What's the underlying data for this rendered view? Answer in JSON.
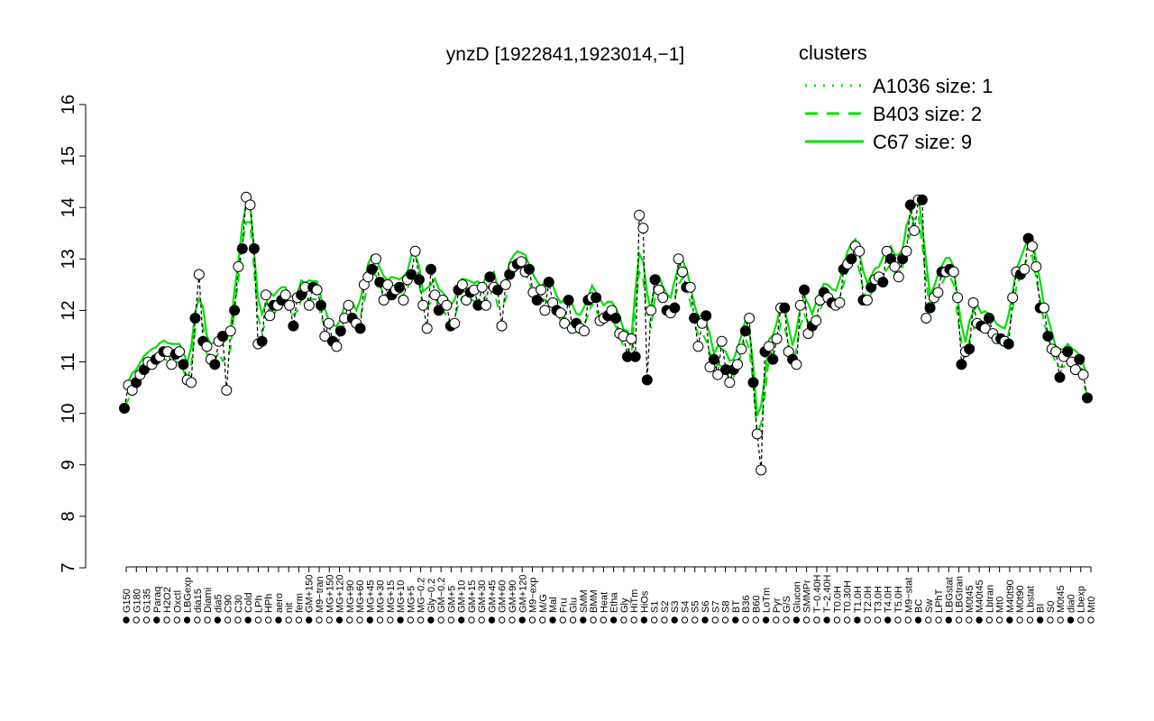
{
  "chart_data": {
    "type": "scatter",
    "title": "ynzD [1922841,1923014,−1]",
    "xlabel": "",
    "ylabel": "",
    "ylim": [
      7,
      16
    ],
    "yticks": [
      "7",
      "8",
      "9",
      "10",
      "11",
      "12",
      "13",
      "14",
      "15",
      "16"
    ],
    "x_tick_labels": [
      "G150",
      "G180",
      "G135",
      "Paraq",
      "H2O2",
      "Oxctl",
      "LBGexp",
      "dia15",
      "Diami",
      "dia5",
      "C90",
      "C30",
      "Cold",
      "LPh",
      "HPh",
      "aero",
      "nit",
      "ferm",
      "GM+150",
      "M9−tran",
      "MG+150",
      "MG+120",
      "MG+90",
      "MG+60",
      "MG+45",
      "MG+30",
      "MG+15",
      "MG+10",
      "MG+5",
      "MG−0.2",
      "Gly−0.2",
      "GM−0.2",
      "GM+5",
      "GM+10",
      "GM+15",
      "GM+30",
      "GM+45",
      "GM+60",
      "GM+90",
      "GM+120",
      "M9−exp",
      "M/G",
      "Mal",
      "Fru",
      "Glu",
      "SMM",
      "BMM",
      "Heat",
      "Etha",
      "Gly",
      "HiTm",
      "HiOs",
      "S1",
      "S2",
      "S3",
      "S4",
      "S5",
      "S6",
      "S7",
      "S8",
      "BT",
      "B36",
      "B60",
      "LoTm",
      "Pyr",
      "G/S",
      "Glucon",
      "SMMPr",
      "T−0.40H",
      "T−2.40H",
      "T0.0H",
      "T0.30H",
      "T1.0H",
      "T2.0H",
      "T3.0H",
      "T4.0H",
      "T5.0H",
      "M9−stat",
      "BC",
      "Sw",
      "LPhT",
      "LBGstat",
      "LBGtran",
      "M0t45",
      "M40t45",
      "Lbtran",
      "Mt0",
      "M40t90",
      "M0t90",
      "Lbstat",
      "BI",
      "S0",
      "M0t45",
      "dia0",
      "Lbexp",
      "Mt0"
    ],
    "points": [
      10.1,
      10.55,
      10.45,
      10.6,
      10.75,
      10.85,
      11.0,
      10.95,
      11.05,
      11.1,
      11.2,
      11.2,
      10.95,
      11.15,
      11.2,
      10.95,
      10.65,
      10.6,
      11.85,
      12.7,
      11.4,
      11.3,
      11.05,
      10.95,
      11.4,
      11.5,
      10.45,
      11.6,
      12.0,
      12.85,
      13.2,
      14.2,
      14.05,
      13.2,
      11.35,
      11.4,
      12.3,
      11.9,
      12.1,
      12.1,
      12.2,
      12.3,
      12.1,
      11.7,
      12.25,
      12.3,
      12.45,
      12.1,
      12.45,
      12.4,
      12.1,
      11.5,
      11.75,
      11.4,
      11.3,
      11.6,
      11.85,
      12.1,
      11.85,
      11.75,
      11.65,
      12.5,
      12.65,
      12.8,
      13.0,
      12.55,
      12.2,
      12.5,
      12.3,
      12.4,
      12.45,
      12.2,
      12.6,
      12.7,
      13.15,
      12.6,
      12.1,
      11.65,
      12.8,
      12.3,
      12.0,
      12.2,
      12.1,
      11.7,
      11.75,
      12.4,
      12.5,
      12.2,
      12.35,
      12.4,
      12.1,
      12.45,
      12.1,
      12.65,
      12.45,
      12.4,
      11.7,
      12.5,
      12.7,
      12.85,
      12.9,
      12.95,
      12.75,
      12.8,
      12.35,
      12.2,
      12.4,
      12.0,
      12.55,
      12.15,
      12.0,
      11.95,
      11.75,
      12.2,
      11.65,
      11.75,
      11.65,
      11.6,
      12.2,
      12.25,
      12.25,
      11.8,
      11.85,
      11.9,
      12.0,
      11.85,
      11.55,
      11.5,
      11.1,
      11.45,
      11.1,
      13.85,
      13.6,
      10.65,
      12.0,
      12.6,
      12.4,
      12.25,
      12.0,
      11.95,
      12.05,
      13.0,
      12.75,
      12.45,
      12.45,
      11.85,
      11.3,
      11.75,
      11.9,
      10.9,
      11.05,
      10.75,
      11.4,
      10.85,
      10.6,
      10.85,
      10.95,
      11.25,
      11.6,
      11.85,
      10.6,
      9.6,
      8.9,
      11.2,
      11.3,
      11.05,
      11.45,
      12.05,
      12.05,
      11.2,
      11.05,
      10.95,
      12.1,
      12.4,
      11.55,
      11.7,
      11.8,
      12.2,
      12.35,
      12.25,
      12.15,
      12.1,
      12.15,
      12.8,
      12.9,
      13.0,
      13.25,
      13.15,
      12.2,
      12.2,
      12.45,
      12.6,
      12.65,
      12.55,
      13.15,
      13.0,
      12.85,
      12.65,
      13.0,
      13.15,
      14.05,
      13.55,
      14.15,
      14.15,
      11.85,
      12.05,
      12.25,
      12.35,
      12.75,
      12.75,
      12.8,
      12.75,
      12.25,
      10.95,
      11.2,
      11.25,
      12.15,
      11.75,
      11.7,
      11.65,
      11.85,
      11.55,
      11.45,
      11.45,
      11.4,
      11.35,
      12.25,
      12.75,
      12.7,
      12.8,
      13.4,
      13.25,
      12.85,
      12.05,
      12.05,
      11.5,
      11.25,
      11.2,
      10.7,
      11.1,
      11.2,
      11.0,
      10.85,
      11.05,
      10.75,
      10.3
    ],
    "legend": {
      "title": "clusters",
      "entries": [
        {
          "label": "A1036 size: 1",
          "style": "dotted"
        },
        {
          "label": "B403 size: 2",
          "style": "dashed"
        },
        {
          "label": "C67 size: 9",
          "style": "solid"
        }
      ]
    },
    "legend_position": "top-right",
    "grid": false,
    "colors": {
      "cluster_line": "#00e000",
      "black_line": "#000000"
    }
  }
}
